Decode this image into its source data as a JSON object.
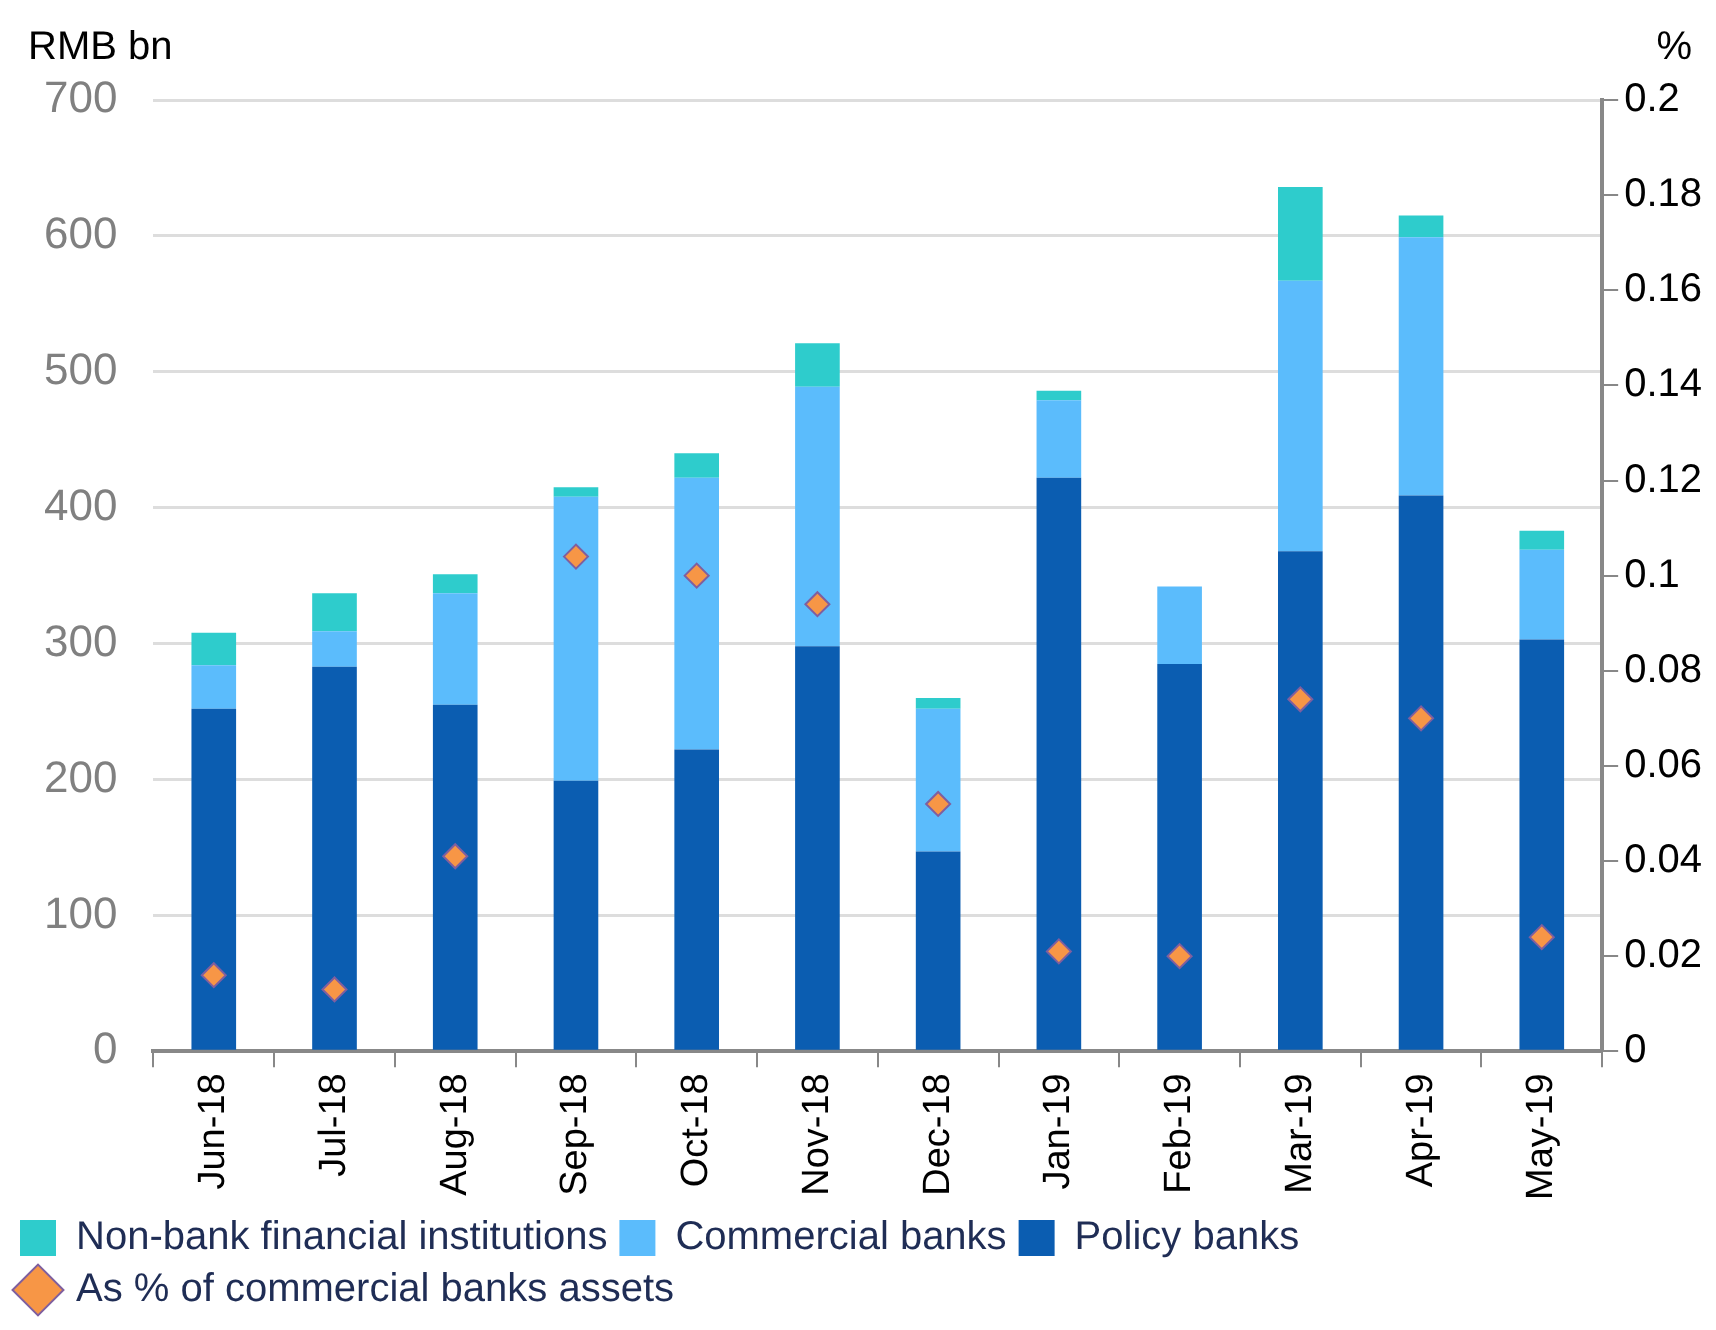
{
  "chart_data": {
    "type": "bar",
    "stacked": true,
    "ylabel": "RMB bn",
    "y2label": "%",
    "categories": [
      "Jun-18",
      "Jul-18",
      "Aug-18",
      "Sep-18",
      "Oct-18",
      "Nov-18",
      "Dec-18",
      "Jan-19",
      "Feb-19",
      "Mar-19",
      "Apr-19",
      "May-19"
    ],
    "series": [
      {
        "name": "Policy banks",
        "color": "#0b5db1",
        "values": [
          252,
          283,
          255,
          199,
          222,
          298,
          147,
          422,
          285,
          368,
          409,
          303
        ]
      },
      {
        "name": "Commercial banks",
        "color": "#5bbcfc",
        "values": [
          32,
          26,
          82,
          209,
          200,
          191,
          105,
          57,
          57,
          199,
          190,
          66
        ]
      },
      {
        "name": "Non-bank financial institutions",
        "color": "#2ecccc",
        "values": [
          24,
          28,
          14,
          7,
          18,
          32,
          8,
          7,
          0,
          69,
          16,
          14
        ]
      },
      {
        "name": "As % of commercial banks assets",
        "type": "scatter",
        "axis": "y2",
        "marker": "diamond",
        "color": "#f79646",
        "values": [
          0.016,
          0.013,
          0.041,
          0.104,
          0.1,
          0.094,
          0.052,
          0.021,
          0.02,
          0.074,
          0.07,
          0.024
        ]
      }
    ],
    "ylim": [
      0,
      700
    ],
    "yticks": [
      0,
      100,
      200,
      300,
      400,
      500,
      600,
      700
    ],
    "y2lim": [
      0,
      0.2
    ],
    "y2ticks": [
      0,
      0.02,
      0.04,
      0.06,
      0.08,
      0.1,
      0.12,
      0.14,
      0.16,
      0.18,
      0.2
    ],
    "grid": "y",
    "legend": "bottom"
  }
}
